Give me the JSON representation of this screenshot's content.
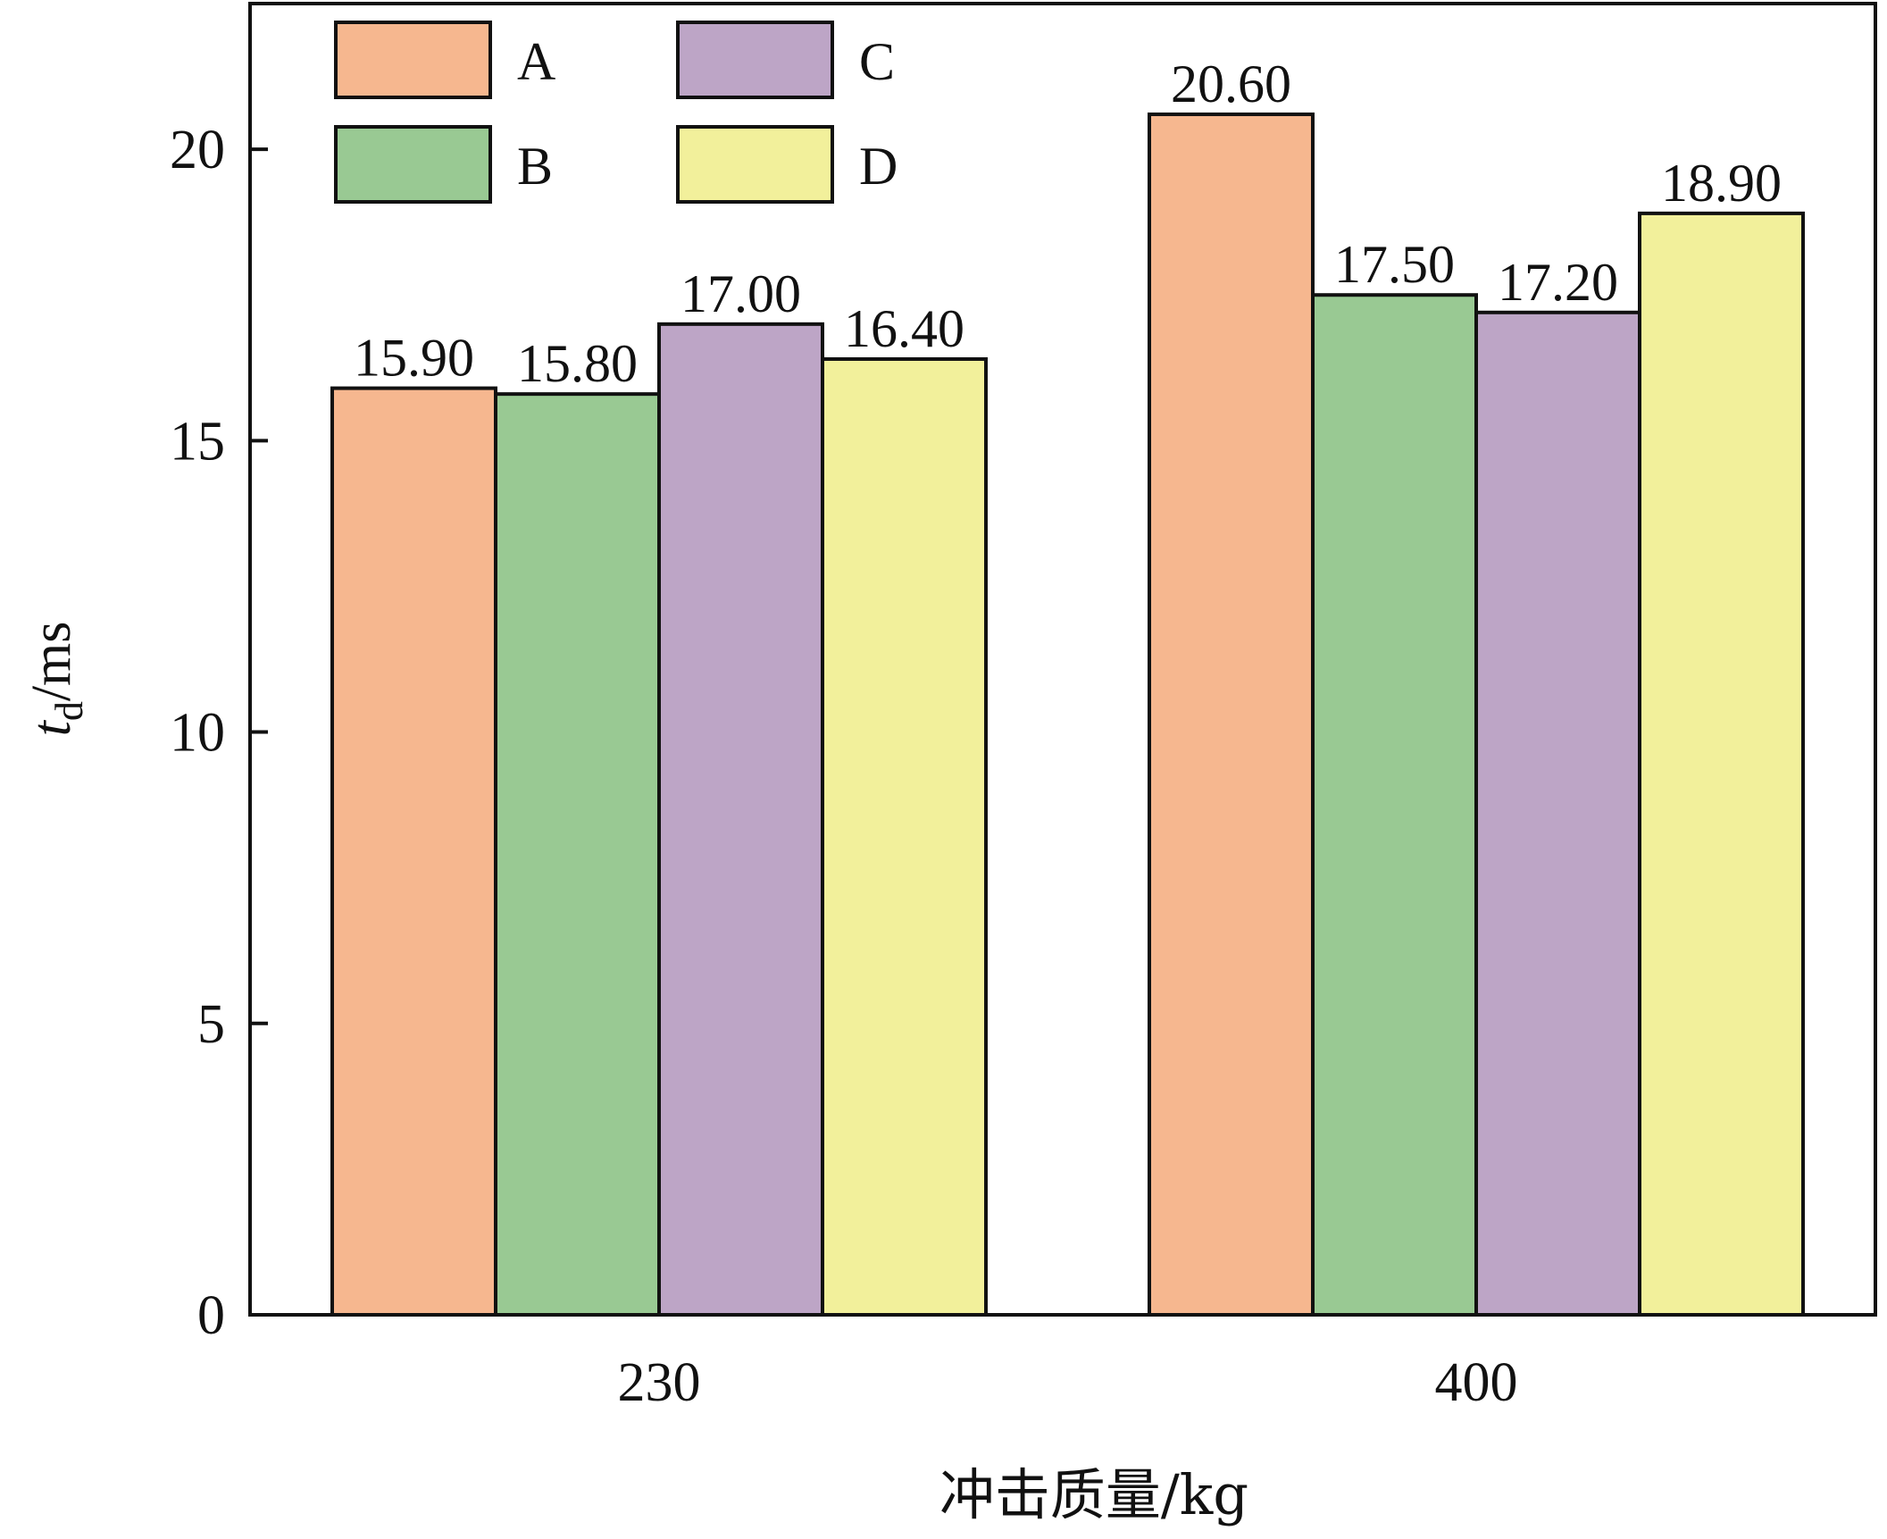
{
  "chart_data": {
    "type": "bar",
    "categories": [
      "230",
      "400"
    ],
    "series": [
      {
        "name": "A",
        "values": [
          15.9,
          20.6
        ],
        "color": "#F6B78F"
      },
      {
        "name": "B",
        "values": [
          15.8,
          17.5
        ],
        "color": "#99C993"
      },
      {
        "name": "C",
        "values": [
          17.0,
          17.2
        ],
        "color": "#BDA5C6"
      },
      {
        "name": "D",
        "values": [
          16.4,
          18.9
        ],
        "color": "#F2F09B"
      }
    ],
    "value_labels": [
      [
        "15.90",
        "20.60"
      ],
      [
        "15.80",
        "17.50"
      ],
      [
        "17.00",
        "17.20"
      ],
      [
        "16.40",
        "18.90"
      ]
    ],
    "xlabel": "冲击质量/kg",
    "ylabel_main": "t",
    "ylabel_sub": "d",
    "ylabel_unit": "/ms",
    "ylim": [
      0,
      22.5
    ],
    "yticks": [
      0,
      5,
      10,
      15,
      20
    ],
    "ytick_labels": [
      "0",
      "5",
      "10",
      "15",
      "20"
    ],
    "grid": false,
    "legend_position": "top-left"
  }
}
